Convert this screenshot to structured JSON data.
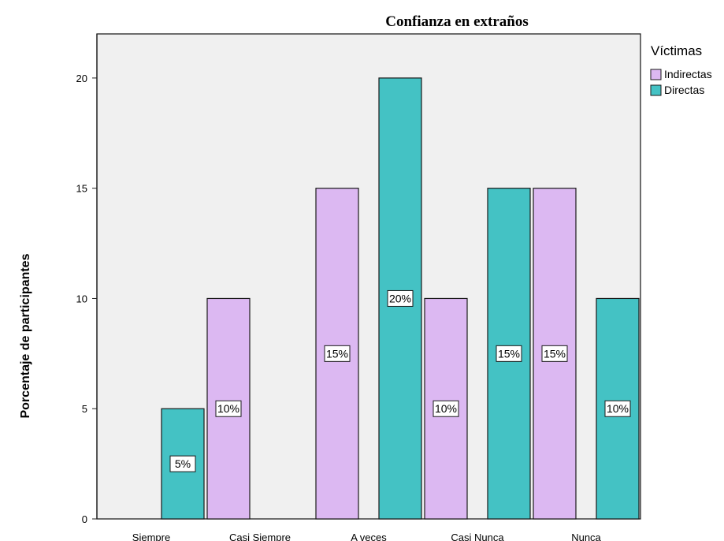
{
  "chart_data": {
    "type": "bar",
    "title": "Confianza en extraños",
    "ylabel": "Porcentaje de participantes",
    "xlabel": "",
    "categories": [
      "Siempre",
      "Casi Siempre",
      "A veces",
      "Casi Nunca",
      "Nunca"
    ],
    "ylim": [
      0,
      22
    ],
    "yticks": [
      0,
      5,
      10,
      15,
      20
    ],
    "legend_title": "Víctimas",
    "legend_position": "top-right",
    "grid": false,
    "series": [
      {
        "name": "Indirectas",
        "color": "#dcb8f2",
        "values": [
          0,
          10,
          15,
          10,
          15
        ],
        "labels": [
          "",
          "10%",
          "15%",
          "10%",
          "15%"
        ]
      },
      {
        "name": "Directas",
        "color": "#44c2c4",
        "values": [
          5,
          0,
          20,
          15,
          10
        ],
        "labels": [
          "5%",
          "",
          "20%",
          "15%",
          "10%"
        ]
      }
    ]
  }
}
